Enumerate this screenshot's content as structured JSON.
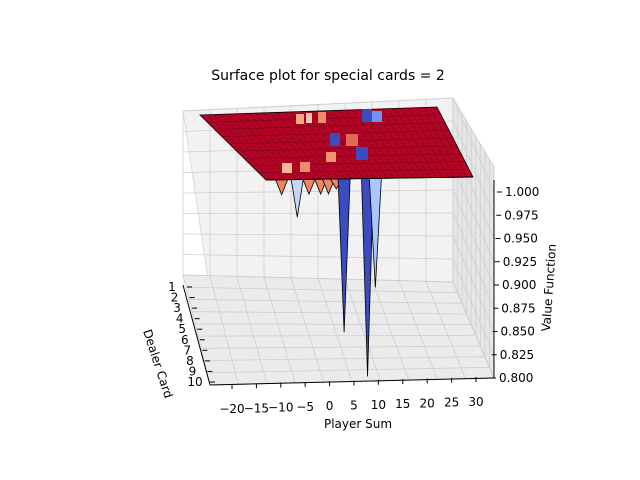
{
  "chart_data": {
    "type": "surface",
    "title": "Surface plot for special cards = 2",
    "xlabel": "Player Sum",
    "ylabel": "Dealer Card",
    "zlabel": "Value Function",
    "x_ticks": [
      "−20",
      "−15",
      "−10",
      "−5",
      "0",
      "5",
      "10",
      "15",
      "20",
      "25",
      "30"
    ],
    "y_ticks": [
      "1",
      "2",
      "3",
      "4",
      "5",
      "6",
      "7",
      "8",
      "9",
      "10"
    ],
    "z_ticks": [
      "0.800",
      "0.825",
      "0.850",
      "0.875",
      "0.900",
      "0.925",
      "0.950",
      "0.975",
      "1.000"
    ],
    "xlim": [
      -22,
      31
    ],
    "ylim": [
      1,
      10
    ],
    "zlim": [
      0.8,
      1.0
    ],
    "colormap": "coolwarm",
    "surface_plateau_value": 1.0,
    "dips": [
      {
        "player_sum": -18,
        "dealer_card": 1,
        "value": 0.985
      },
      {
        "player_sum": -14,
        "dealer_card": 1,
        "value": 0.962
      },
      {
        "player_sum": -11,
        "dealer_card": 1,
        "value": 0.985
      },
      {
        "player_sum": -8,
        "dealer_card": 1,
        "value": 0.985
      },
      {
        "player_sum": -6,
        "dealer_card": 1,
        "value": 0.985
      },
      {
        "player_sum": -4,
        "dealer_card": 1,
        "value": 0.99
      },
      {
        "player_sum": -2,
        "dealer_card": 1,
        "value": 0.845
      },
      {
        "player_sum": 4,
        "dealer_card": 1,
        "value": 0.8
      },
      {
        "player_sum": 6,
        "dealer_card": 1,
        "value": 0.89
      }
    ],
    "grid": true
  }
}
